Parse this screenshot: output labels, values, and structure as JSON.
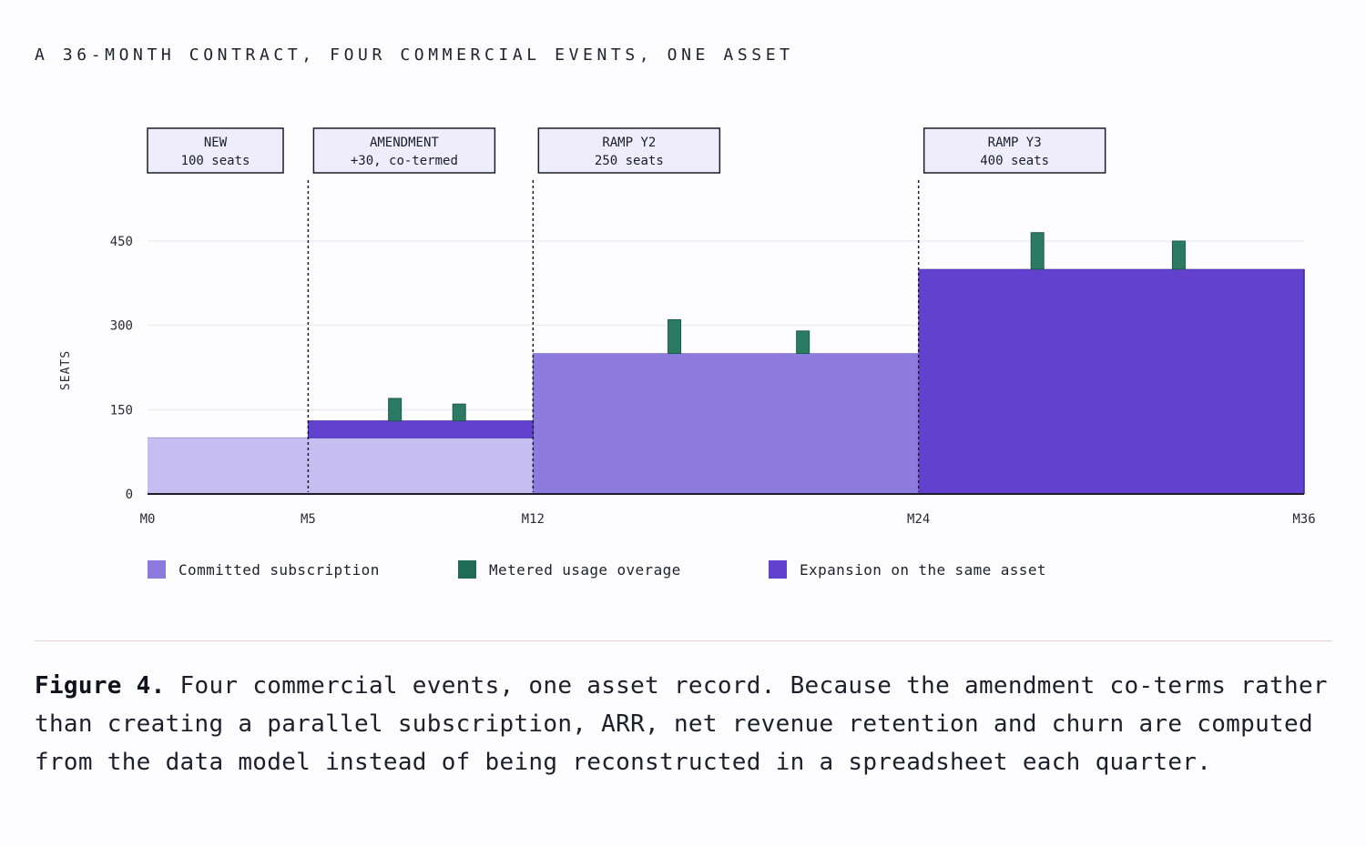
{
  "header": {
    "title": "A 36-MONTH CONTRACT, FOUR COMMERCIAL EVENTS, ONE ASSET"
  },
  "colors": {
    "committed_y1": "#c6bdf0",
    "committed_y2": "#8e7bde",
    "committed_y3": "#6241cf",
    "expansion": "#6241cf",
    "overage": "#2b7a62",
    "callout_fill": "#efedfc",
    "axis": "#1c1c2a",
    "grid": "#e8e6ee"
  },
  "chart_data": {
    "type": "area",
    "title": "A 36-MONTH CONTRACT, FOUR COMMERCIAL EVENTS, ONE ASSET",
    "ylabel": "SEATS",
    "xlabel": "",
    "xlim": [
      0,
      36
    ],
    "ylim": [
      0,
      450
    ],
    "y_ticks": [
      0,
      150,
      300,
      450
    ],
    "x_ticks": [
      {
        "month": 0,
        "label": "M0"
      },
      {
        "month": 5,
        "label": "M5"
      },
      {
        "month": 12,
        "label": "M12"
      },
      {
        "month": 24,
        "label": "M24"
      },
      {
        "month": 36,
        "label": "M36"
      }
    ],
    "grid": true,
    "committed": [
      {
        "from": 0,
        "to": 12,
        "seats": 100,
        "color_key": "committed_y1"
      },
      {
        "from": 12,
        "to": 24,
        "seats": 250,
        "color_key": "committed_y2"
      },
      {
        "from": 24,
        "to": 36,
        "seats": 400,
        "color_key": "committed_y3"
      }
    ],
    "expansion": [
      {
        "from": 5,
        "to": 12,
        "base": 100,
        "top": 130,
        "color_key": "expansion"
      }
    ],
    "overage": [
      {
        "month": 7.7,
        "base": 130,
        "top": 170
      },
      {
        "month": 9.7,
        "base": 130,
        "top": 160
      },
      {
        "month": 16.4,
        "base": 250,
        "top": 310
      },
      {
        "month": 20.4,
        "base": 250,
        "top": 290
      },
      {
        "month": 27.7,
        "base": 400,
        "top": 465
      },
      {
        "month": 32.1,
        "base": 400,
        "top": 450
      }
    ],
    "events": [
      {
        "month": 0,
        "line": false,
        "name": "NEW",
        "detail": "100 seats"
      },
      {
        "month": 5,
        "line": true,
        "name": "AMENDMENT",
        "detail": "+30, co-termed"
      },
      {
        "month": 12,
        "line": true,
        "name": "RAMP Y2",
        "detail": "250 seats"
      },
      {
        "month": 24,
        "line": true,
        "name": "RAMP Y3",
        "detail": "400 seats"
      }
    ],
    "legend": [
      {
        "label": "Committed subscription",
        "color_key": "committed_y2"
      },
      {
        "label": "Metered usage overage",
        "color_key": "overage"
      },
      {
        "label": "Expansion on the same asset",
        "color_key": "expansion"
      }
    ],
    "legend_position": "bottom"
  },
  "caption": {
    "label": "Figure 4.",
    "text": " Four commercial events, one asset record. Because the amendment co-terms rather than creating a parallel subscription, ARR, net revenue retention and churn are computed from the data model instead of being reconstructed in a spreadsheet each quarter."
  }
}
